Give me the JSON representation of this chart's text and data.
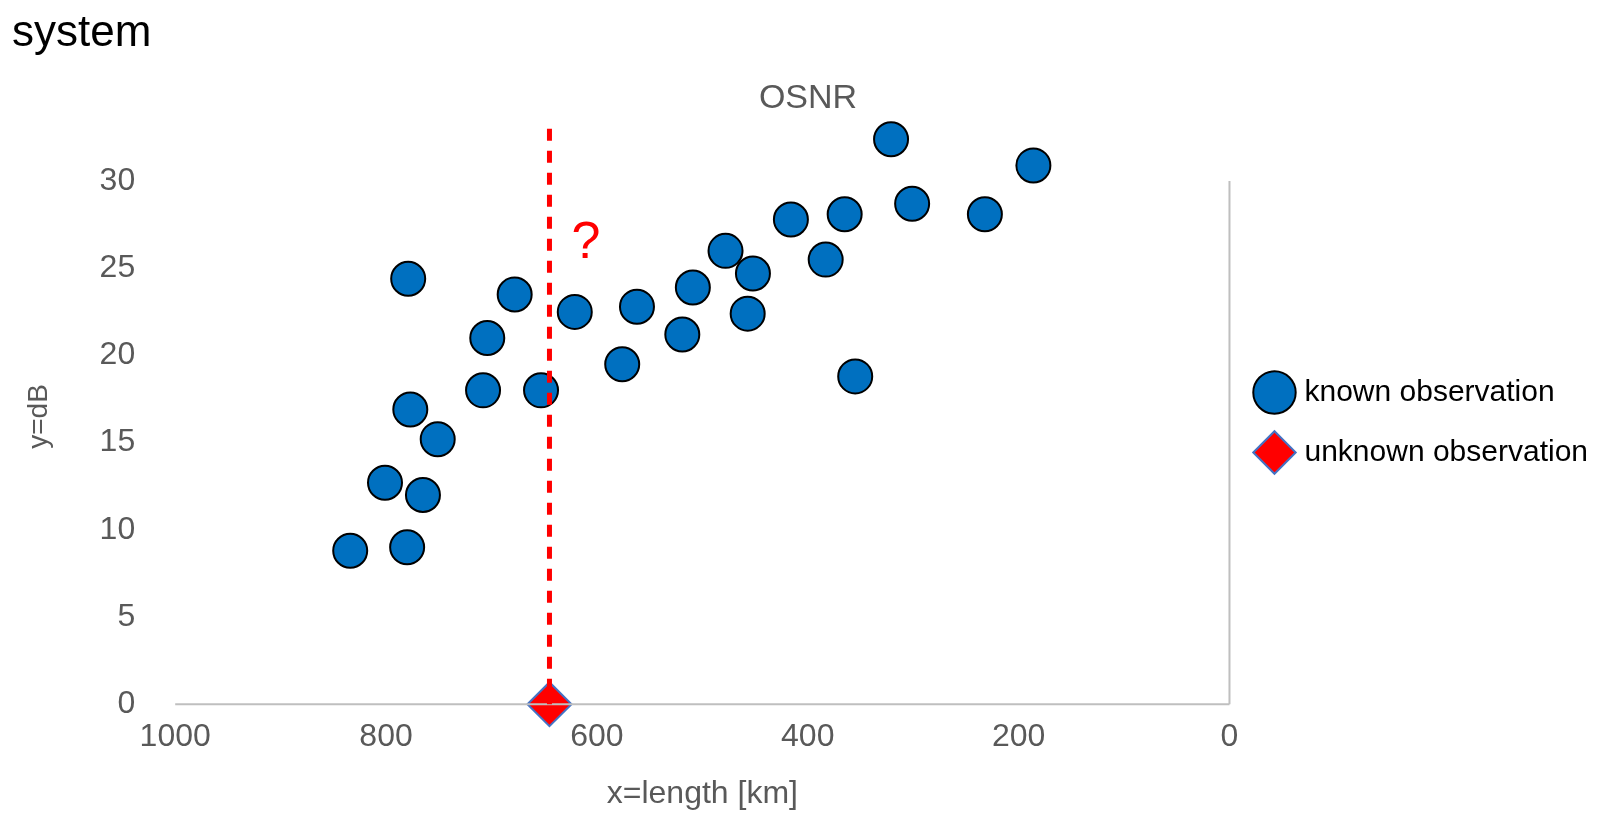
{
  "chart_data": {
    "type": "scatter",
    "title": "OSNR",
    "xlabel": "x=length [km]",
    "ylabel": "y=dB",
    "annotations": [
      "system",
      "?"
    ],
    "xlim": [
      1000,
      0
    ],
    "xticks": [
      1000,
      800,
      600,
      400,
      200,
      0
    ],
    "ylim": [
      0,
      33
    ],
    "yticks": [
      0,
      5,
      10,
      15,
      20,
      25,
      30
    ],
    "grid": false,
    "legend": "right",
    "ref_lines": [
      {
        "axis": "x",
        "value": 645,
        "color": "#ff0000",
        "line_style": "dashed"
      }
    ],
    "series": [
      {
        "name": "known observation",
        "color": "#0070c0",
        "marker": "circle",
        "x": [
          834,
          780,
          801,
          765,
          751,
          777,
          779,
          708,
          704,
          678,
          653,
          621,
          576,
          562,
          519,
          509,
          478,
          457,
          452,
          416,
          383,
          365,
          355,
          321,
          301,
          232,
          186
        ],
        "values": [
          8.8,
          9.0,
          12.7,
          12.0,
          15.2,
          16.9,
          24.4,
          18.0,
          21.0,
          23.5,
          18.0,
          22.5,
          19.5,
          22.8,
          21.2,
          23.9,
          26.0,
          22.4,
          24.7,
          27.8,
          25.5,
          28.1,
          18.8,
          32.4,
          28.7,
          28.1,
          30.9
        ]
      },
      {
        "name": "unknown observation",
        "color": "#ff0000",
        "marker": "diamond",
        "x": [
          645
        ],
        "values": [
          0
        ]
      }
    ]
  }
}
